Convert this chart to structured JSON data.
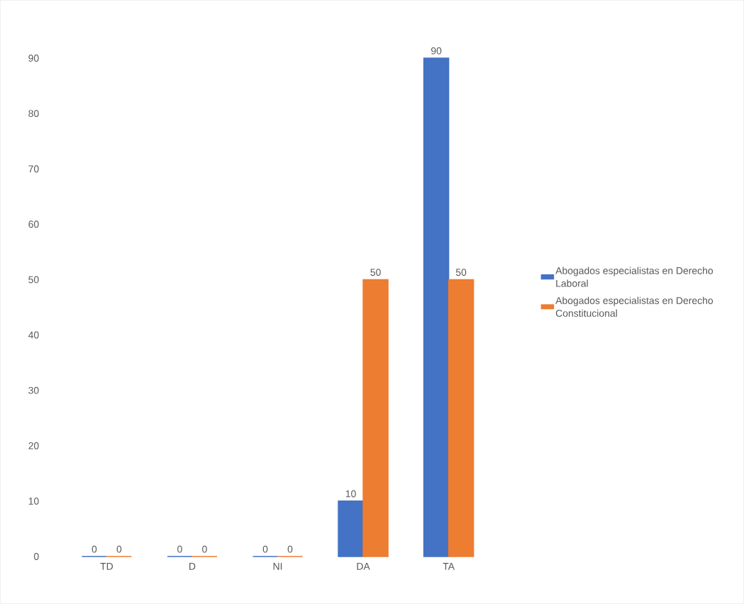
{
  "chart_data": {
    "type": "bar",
    "categories": [
      "TD",
      "D",
      "NI",
      "DA",
      "TA"
    ],
    "series": [
      {
        "name": "Abogados especialistas en Derecho Laboral",
        "color": "#4472c4",
        "values": [
          0,
          0,
          0,
          10,
          90
        ]
      },
      {
        "name": "Abogados especialistas en Derecho Constitucional",
        "color": "#ed7d31",
        "values": [
          0,
          0,
          0,
          50,
          50
        ]
      }
    ],
    "ylim": [
      0,
      90
    ],
    "yticks": [
      0,
      10,
      20,
      30,
      40,
      50,
      60,
      70,
      80,
      90
    ],
    "grid": false,
    "legend": "right",
    "data_labels": true
  }
}
